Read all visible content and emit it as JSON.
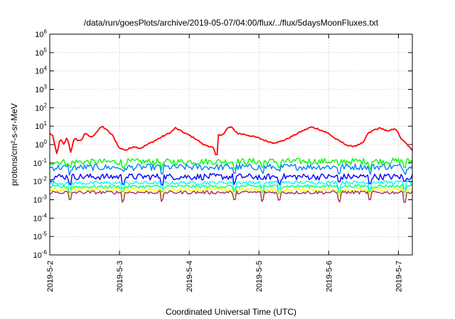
{
  "chart_data": {
    "type": "line",
    "title": "/data/run/goesPlots/archive/2019-05-07/04:00/flux/../flux/5daysMoonFluxes.txt",
    "xlabel": "Coordinated Universal Time (UTC)",
    "ylabel": "protons/cm²-s-sr-MeV",
    "yscale": "log",
    "ylim": [
      1e-06,
      1000000.0
    ],
    "xlim": [
      0,
      5.2
    ],
    "grid": true,
    "y_ticks": [
      {
        "value": -6,
        "base": "10",
        "exp": "-6"
      },
      {
        "value": -5,
        "base": "10",
        "exp": "-5"
      },
      {
        "value": -4,
        "base": "10",
        "exp": "-4"
      },
      {
        "value": -3,
        "base": "10",
        "exp": "-3"
      },
      {
        "value": -2,
        "base": "10",
        "exp": "-2"
      },
      {
        "value": -1,
        "base": "10",
        "exp": "-1"
      },
      {
        "value": 0,
        "base": "10",
        "exp": "0"
      },
      {
        "value": 1,
        "base": "10",
        "exp": "1"
      },
      {
        "value": 2,
        "base": "10",
        "exp": "2"
      },
      {
        "value": 3,
        "base": "10",
        "exp": "3"
      },
      {
        "value": 4,
        "base": "10",
        "exp": "4"
      },
      {
        "value": 5,
        "base": "10",
        "exp": "5"
      },
      {
        "value": 6,
        "base": "10",
        "exp": "6"
      }
    ],
    "x_ticks": [
      {
        "value": 0,
        "label": "2019-5-2"
      },
      {
        "value": 1,
        "label": "2019-5-3"
      },
      {
        "value": 2,
        "label": "2019-5-4"
      },
      {
        "value": 3,
        "label": "2019-5-5"
      },
      {
        "value": 4,
        "label": "2019-5-6"
      },
      {
        "value": 5,
        "label": "2019-5-7"
      }
    ],
    "series": [
      {
        "color": "#ff0000",
        "base": [
          [
            0,
            0.6
          ],
          [
            0.04,
            0.5
          ],
          [
            0.1,
            -0.5
          ],
          [
            0.15,
            0.3
          ],
          [
            0.2,
            0.0
          ],
          [
            0.25,
            0.4
          ],
          [
            0.3,
            -0.4
          ],
          [
            0.35,
            0.3
          ],
          [
            0.45,
            0.2
          ],
          [
            0.5,
            0.6
          ],
          [
            0.6,
            0.4
          ],
          [
            0.7,
            0.8
          ],
          [
            0.75,
            1.0
          ],
          [
            0.8,
            0.85
          ],
          [
            0.9,
            0.5
          ],
          [
            1.0,
            -0.2
          ],
          [
            1.1,
            -0.3
          ],
          [
            1.2,
            -0.1
          ],
          [
            1.3,
            -0.2
          ],
          [
            1.45,
            0.1
          ],
          [
            1.6,
            0.4
          ],
          [
            1.75,
            0.7
          ],
          [
            1.8,
            0.9
          ],
          [
            1.95,
            0.6
          ],
          [
            2.1,
            0.3
          ],
          [
            2.2,
            0.0
          ],
          [
            2.3,
            -0.1
          ],
          [
            2.35,
            -0.2
          ],
          [
            2.38,
            -0.6
          ],
          [
            2.4,
            -0.55
          ],
          [
            2.42,
            0.5
          ],
          [
            2.5,
            0.6
          ],
          [
            2.55,
            0.9
          ],
          [
            2.6,
            0.95
          ],
          [
            2.7,
            0.6
          ],
          [
            2.8,
            0.55
          ],
          [
            2.9,
            0.45
          ],
          [
            3.0,
            0.35
          ],
          [
            3.1,
            0.2
          ],
          [
            3.2,
            0.1
          ],
          [
            3.3,
            0.15
          ],
          [
            3.4,
            0.3
          ],
          [
            3.5,
            0.5
          ],
          [
            3.6,
            0.7
          ],
          [
            3.75,
            0.95
          ],
          [
            3.85,
            0.85
          ],
          [
            4.0,
            0.6
          ],
          [
            4.1,
            0.3
          ],
          [
            4.2,
            0.1
          ],
          [
            4.3,
            -0.1
          ],
          [
            4.4,
            -0.05
          ],
          [
            4.5,
            0.1
          ],
          [
            4.55,
            0.55
          ],
          [
            4.65,
            0.8
          ],
          [
            4.75,
            0.9
          ],
          [
            4.85,
            0.7
          ],
          [
            4.95,
            0.9
          ],
          [
            5.0,
            0.6
          ],
          [
            5.05,
            0.25
          ],
          [
            5.1,
            0.1
          ],
          [
            5.15,
            -0.1
          ],
          [
            5.2,
            -0.35
          ]
        ]
      },
      {
        "color": "#00ff00",
        "base": [
          [
            0,
            -0.95
          ],
          [
            5.2,
            -0.9
          ]
        ]
      },
      {
        "color": "#0080ff",
        "base": [
          [
            0,
            -1.25
          ],
          [
            5.2,
            -1.2
          ]
        ]
      },
      {
        "color": "#0000ff",
        "base": [
          [
            0,
            -1.75
          ],
          [
            5.2,
            -1.75
          ]
        ]
      },
      {
        "color": "#00ffff",
        "base": [
          [
            0,
            -2.1
          ],
          [
            5.2,
            -2.05
          ]
        ]
      },
      {
        "color": "#00ff80",
        "base": [
          [
            0,
            -2.3
          ],
          [
            5.2,
            -2.25
          ]
        ]
      },
      {
        "color": "#ffff00",
        "base": [
          [
            0,
            -2.45
          ],
          [
            5.2,
            -2.45
          ]
        ]
      },
      {
        "color": "#993366",
        "base": [
          [
            0,
            -2.6
          ],
          [
            5.2,
            -2.6
          ]
        ]
      }
    ]
  }
}
